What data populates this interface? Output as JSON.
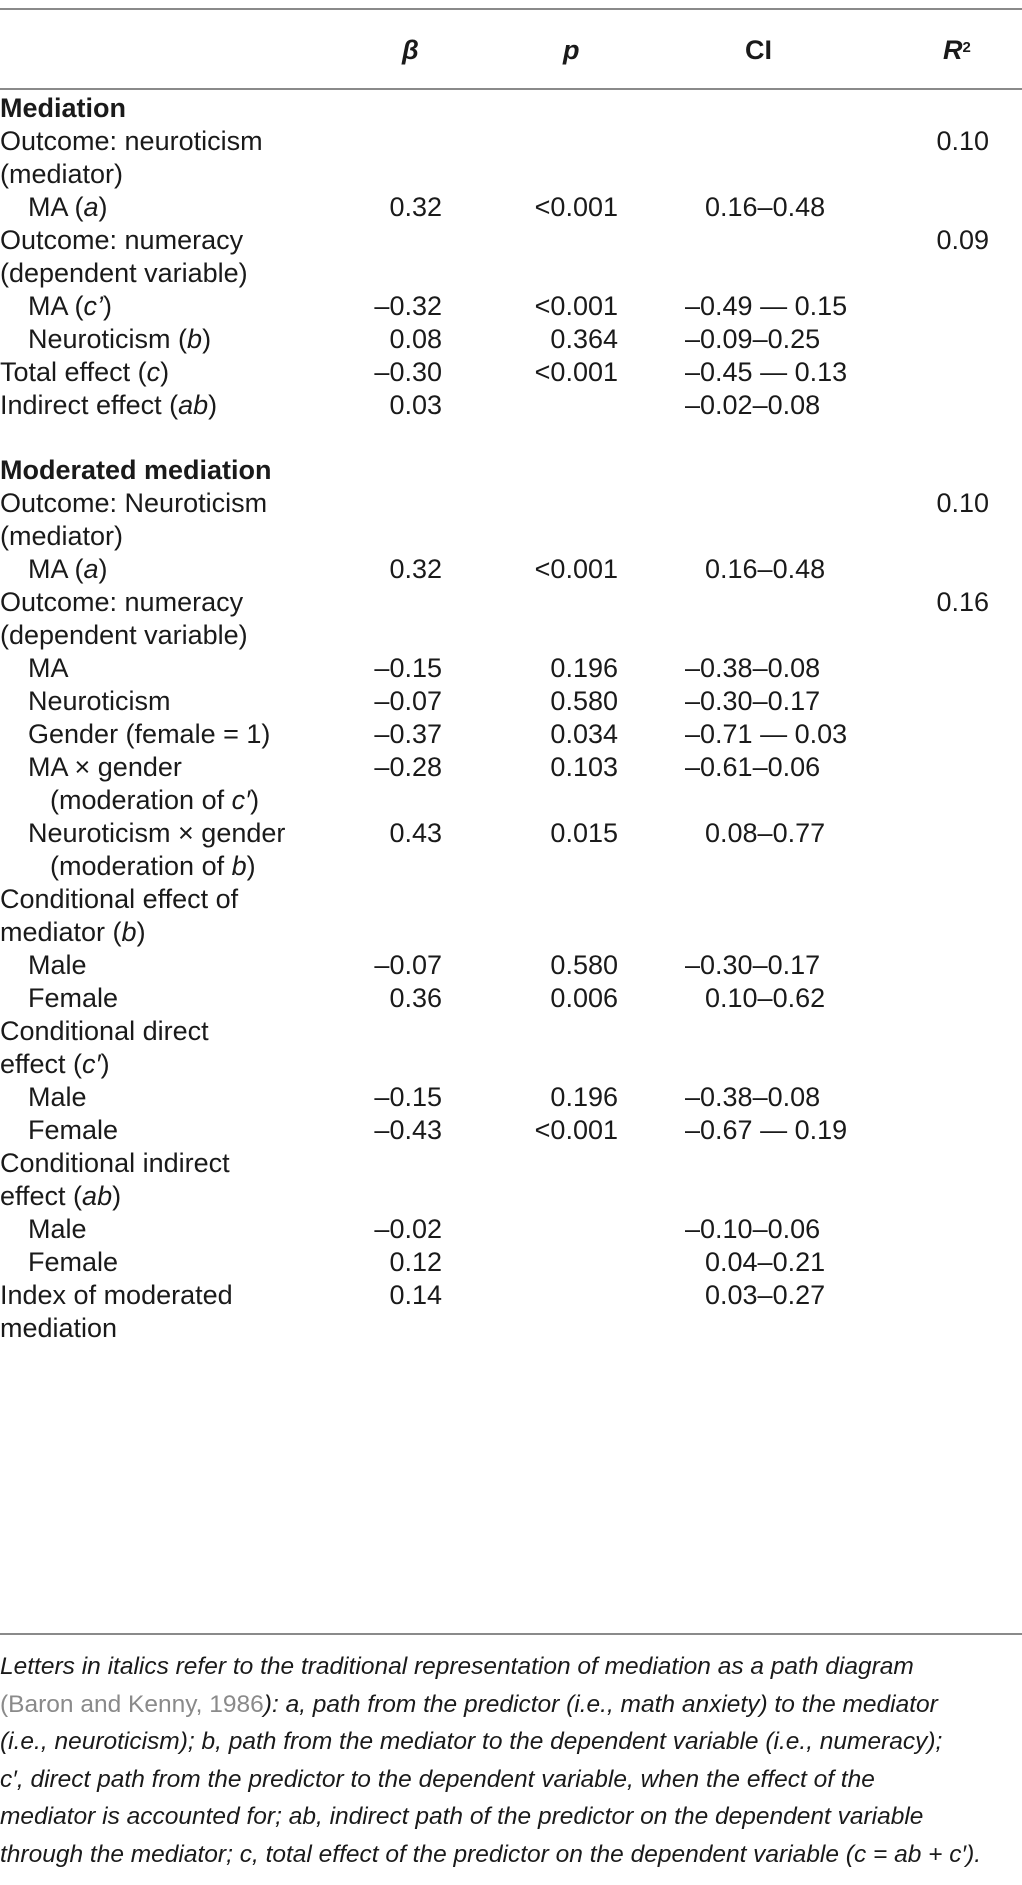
{
  "header": {
    "beta": "β",
    "p": "p",
    "ci": "CI",
    "r2_base": "R",
    "r2_sup": "2"
  },
  "rows": [
    {
      "label": "Mediation",
      "type": "section"
    },
    {
      "label": "Outcome: neuroticism",
      "indent": 0,
      "r2": "0.10"
    },
    {
      "label": "(mediator)",
      "indent": 0
    },
    {
      "label_plain": "MA (",
      "label_it": "a",
      "label_end": ")",
      "indent": 1,
      "beta": "0.32",
      "p": "<0.001",
      "ci": "0.16–0.48",
      "ci_pad": true
    },
    {
      "label": "Outcome: numeracy",
      "indent": 0,
      "r2": "0.09"
    },
    {
      "label": "(dependent variable)",
      "indent": 0
    },
    {
      "label_plain": "MA (",
      "label_it": "c’",
      "label_end": ")",
      "indent": 1,
      "beta": "–0.32",
      "p": "<0.001",
      "ci": "–0.49 — 0.15"
    },
    {
      "label_plain": "Neuroticism (",
      "label_it": "b",
      "label_end": ")",
      "indent": 1,
      "beta": "0.08",
      "p": "0.364",
      "ci": "–0.09–0.25"
    },
    {
      "label_plain": "Total effect (",
      "label_it": "c",
      "label_end": ")",
      "indent": 0,
      "beta": "–0.30",
      "p": "<0.001",
      "ci": "–0.45 — 0.13"
    },
    {
      "label_plain": "Indirect effect (",
      "label_it": "ab",
      "label_end": ")",
      "indent": 0,
      "beta": "0.03",
      "ci": "–0.02–0.08"
    },
    {
      "label": "Moderated mediation",
      "type": "section"
    },
    {
      "label": "Outcome: Neuroticism",
      "indent": 0,
      "r2": "0.10"
    },
    {
      "label": "(mediator)",
      "indent": 0
    },
    {
      "label_plain": "MA (",
      "label_it": "a",
      "label_end": ")",
      "indent": 1,
      "beta": "0.32",
      "p": "<0.001",
      "ci": "0.16–0.48",
      "ci_pad": true
    },
    {
      "label": "Outcome: numeracy",
      "indent": 0,
      "r2": "0.16"
    },
    {
      "label": "(dependent variable)",
      "indent": 0
    },
    {
      "label": "MA",
      "indent": 1,
      "beta": "–0.15",
      "p": "0.196",
      "ci": "–0.38–0.08"
    },
    {
      "label": "Neuroticism",
      "indent": 1,
      "beta": "–0.07",
      "p": "0.580",
      "ci": "–0.30–0.17"
    },
    {
      "label": "Gender (female = 1)",
      "indent": 1,
      "beta": "–0.37",
      "p": "0.034",
      "ci": "–0.71 — 0.03"
    },
    {
      "label": "MA × gender",
      "indent": 1,
      "beta": "–0.28",
      "p": "0.103",
      "ci": "–0.61–0.06"
    },
    {
      "label_plain": "(moderation of ",
      "label_it": "c′",
      "label_end": ")",
      "indent": 2
    },
    {
      "label": "Neuroticism × gender",
      "indent": 1,
      "beta": "0.43",
      "p": "0.015",
      "ci": "0.08–0.77",
      "ci_pad": true
    },
    {
      "label_plain": "(moderation of ",
      "label_it": "b",
      "label_end": ")",
      "indent": 2
    },
    {
      "label": "Conditional effect of",
      "indent": 0
    },
    {
      "label_plain": "mediator (",
      "label_it": "b",
      "label_end": ")",
      "indent": 0
    },
    {
      "label": "Male",
      "indent": 1,
      "beta": "–0.07",
      "p": "0.580",
      "ci": "–0.30–0.17"
    },
    {
      "label": "Female",
      "indent": 1,
      "beta": "0.36",
      "p": "0.006",
      "ci": "0.10–0.62",
      "ci_pad": true
    },
    {
      "label": "Conditional direct",
      "indent": 0
    },
    {
      "label_plain": "effect (",
      "label_it": "c′",
      "label_end": ")",
      "indent": 0
    },
    {
      "label": "Male",
      "indent": 1,
      "beta": "–0.15",
      "p": "0.196",
      "ci": "–0.38–0.08"
    },
    {
      "label": "Female",
      "indent": 1,
      "beta": "–0.43",
      "p": "<0.001",
      "ci": "–0.67 — 0.19"
    },
    {
      "label": "Conditional indirect",
      "indent": 0
    },
    {
      "label_plain": "effect (",
      "label_it": "ab",
      "label_end": ")",
      "indent": 0
    },
    {
      "label": "Male",
      "indent": 1,
      "beta": "–0.02",
      "ci": "–0.10–0.06"
    },
    {
      "label": "Female",
      "indent": 1,
      "beta": "0.12",
      "ci": "0.04–0.21",
      "ci_pad": true
    },
    {
      "label": "Index of moderated",
      "indent": 0,
      "beta": "0.14",
      "ci": "0.03–0.27",
      "ci_pad": true
    },
    {
      "label": "mediation",
      "indent": 0
    }
  ],
  "note": {
    "line1": "Letters in italics refer to the traditional representation of mediation as a path diagram",
    "line2_cite": "(Baron and Kenny, 1986",
    "line2_rest": "): a, path from the predictor (i.e., math anxiety) to the mediator",
    "line3": "(i.e., neuroticism); b, path from the mediator to the dependent variable (i.e., numeracy);",
    "line4": "c′, direct path from the predictor to the dependent variable, when the effect of the",
    "line5": "mediator is accounted for; ab, indirect path of the predictor on the dependent variable",
    "line6": "through the mediator; c, total effect of the predictor on the dependent variable (c = ab + c′)."
  }
}
